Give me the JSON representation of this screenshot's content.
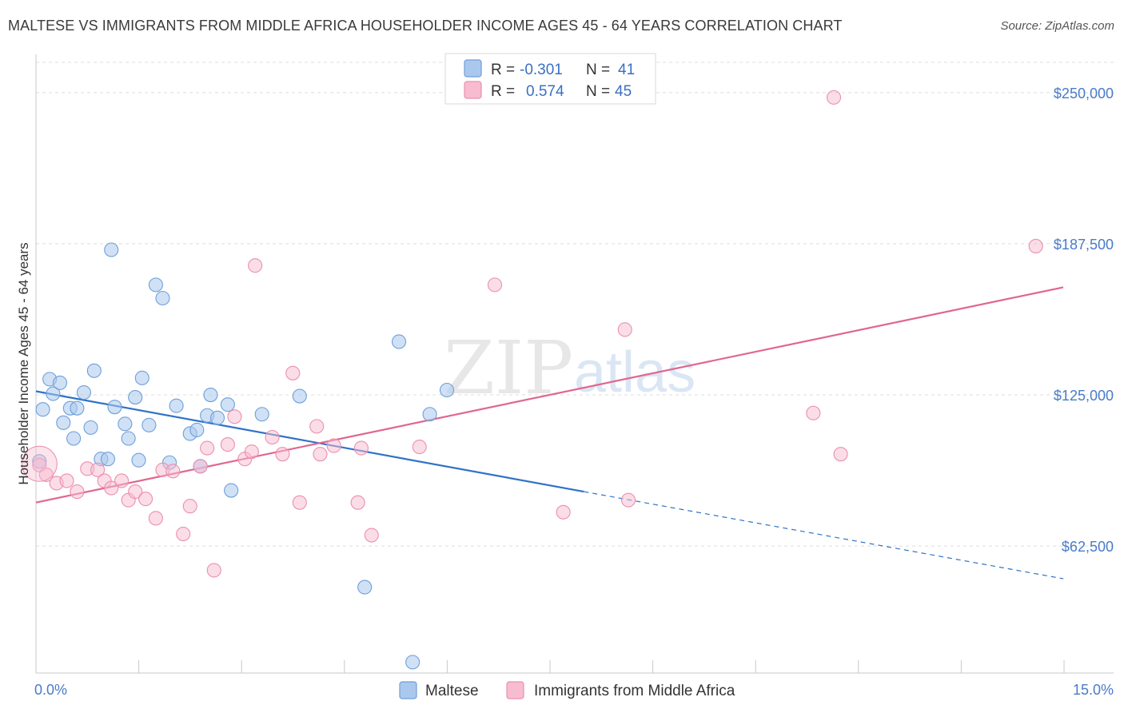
{
  "title": "MALTESE VS IMMIGRANTS FROM MIDDLE AFRICA HOUSEHOLDER INCOME AGES 45 - 64 YEARS CORRELATION CHART",
  "source": "Source: ZipAtlas.com",
  "watermark": {
    "zip": "ZIP",
    "atlas": "atlas"
  },
  "colors": {
    "blue_fill": "#aac8ee",
    "blue_stroke": "#6f9fd8",
    "blue_line": "#2f72c8",
    "pink_fill": "#f7bcd0",
    "pink_stroke": "#eb8fae",
    "pink_line": "#e0668f",
    "tick_label": "#4a7bc8",
    "grid": "#dddddd"
  },
  "legend": {
    "rows": [
      {
        "r_label": "R =",
        "r_value": "-0.301",
        "n_label": "N =",
        "n_value": "41"
      },
      {
        "r_label": "R =",
        "r_value": "0.574",
        "n_label": "N =",
        "n_value": "45"
      }
    ]
  },
  "bottom_legend": {
    "series1": "Maltese",
    "series2": "Immigrants from Middle Africa"
  },
  "chart_data": {
    "type": "scatter",
    "title": "MALTESE VS IMMIGRANTS FROM MIDDLE AFRICA HOUSEHOLDER INCOME AGES 45 - 64 YEARS CORRELATION CHART",
    "xlabel": "",
    "ylabel": "Householder Income Ages 45 - 64 years",
    "xlim": [
      0,
      15
    ],
    "ylim": [
      10000,
      262500
    ],
    "x_tick_labels": [
      "0.0%",
      "15.0%"
    ],
    "y_ticks": [
      62500,
      125000,
      187500,
      250000
    ],
    "y_tick_labels": [
      "$62,500",
      "$125,000",
      "$187,500",
      "$250,000"
    ],
    "grid": true,
    "legend_position": "top-center",
    "series": [
      {
        "name": "Maltese",
        "R": -0.301,
        "N": 41,
        "trend": {
          "x1": 0.0,
          "y1": 126500,
          "x2": 8.0,
          "y2": 85000,
          "dash_to_x": 15.0,
          "dash_to_y": 49000
        },
        "points": [
          [
            0.05,
            97500
          ],
          [
            0.1,
            119000
          ],
          [
            0.2,
            131500
          ],
          [
            0.25,
            125500
          ],
          [
            0.35,
            130000
          ],
          [
            0.4,
            113500
          ],
          [
            0.5,
            119500
          ],
          [
            0.55,
            107000
          ],
          [
            0.6,
            119500
          ],
          [
            0.7,
            126000
          ],
          [
            0.8,
            111500
          ],
          [
            0.85,
            135000
          ],
          [
            0.95,
            98500
          ],
          [
            1.05,
            98500
          ],
          [
            1.15,
            120000
          ],
          [
            1.3,
            113000
          ],
          [
            1.35,
            107000
          ],
          [
            1.45,
            124000
          ],
          [
            1.5,
            98000
          ],
          [
            1.55,
            132000
          ],
          [
            1.65,
            112500
          ],
          [
            1.75,
            170500
          ],
          [
            1.85,
            165000
          ],
          [
            1.95,
            97000
          ],
          [
            2.05,
            120500
          ],
          [
            2.25,
            109000
          ],
          [
            2.35,
            110500
          ],
          [
            2.4,
            95500
          ],
          [
            2.5,
            116500
          ],
          [
            2.55,
            125000
          ],
          [
            2.65,
            115500
          ],
          [
            2.8,
            121000
          ],
          [
            2.85,
            85500
          ],
          [
            3.3,
            117000
          ],
          [
            3.85,
            124500
          ],
          [
            4.8,
            45500
          ],
          [
            5.3,
            147000
          ],
          [
            5.5,
            14500
          ],
          [
            5.75,
            117000
          ],
          [
            6.0,
            127000
          ],
          [
            1.1,
            185000
          ]
        ]
      },
      {
        "name": "Immigrants from Middle Africa",
        "R": 0.574,
        "N": 45,
        "trend": {
          "x1": 0.0,
          "y1": 80500,
          "x2": 15.0,
          "y2": 169500
        },
        "points": [
          [
            0.05,
            96000
          ],
          [
            0.15,
            92000
          ],
          [
            0.3,
            88500
          ],
          [
            0.45,
            89500
          ],
          [
            0.6,
            85000
          ],
          [
            0.75,
            94500
          ],
          [
            0.9,
            94000
          ],
          [
            1.0,
            89500
          ],
          [
            1.1,
            86500
          ],
          [
            1.25,
            89500
          ],
          [
            1.35,
            81500
          ],
          [
            1.45,
            85000
          ],
          [
            1.6,
            82000
          ],
          [
            1.75,
            74000
          ],
          [
            1.85,
            94000
          ],
          [
            2.0,
            93500
          ],
          [
            2.15,
            67500
          ],
          [
            2.25,
            79000
          ],
          [
            2.4,
            95500
          ],
          [
            2.5,
            103000
          ],
          [
            2.6,
            52500
          ],
          [
            2.8,
            104500
          ],
          [
            2.9,
            116000
          ],
          [
            3.05,
            98500
          ],
          [
            3.15,
            101500
          ],
          [
            3.2,
            178500
          ],
          [
            3.45,
            107500
          ],
          [
            3.6,
            100500
          ],
          [
            3.75,
            134000
          ],
          [
            3.85,
            80500
          ],
          [
            4.1,
            112000
          ],
          [
            4.15,
            100500
          ],
          [
            4.35,
            104000
          ],
          [
            4.7,
            80500
          ],
          [
            4.75,
            103000
          ],
          [
            4.9,
            67000
          ],
          [
            5.6,
            103500
          ],
          [
            6.7,
            170500
          ],
          [
            7.7,
            76500
          ],
          [
            8.6,
            152000
          ],
          [
            8.65,
            81500
          ],
          [
            11.35,
            117500
          ],
          [
            11.75,
            100500
          ],
          [
            11.65,
            248000
          ],
          [
            14.6,
            186500
          ]
        ]
      }
    ]
  }
}
